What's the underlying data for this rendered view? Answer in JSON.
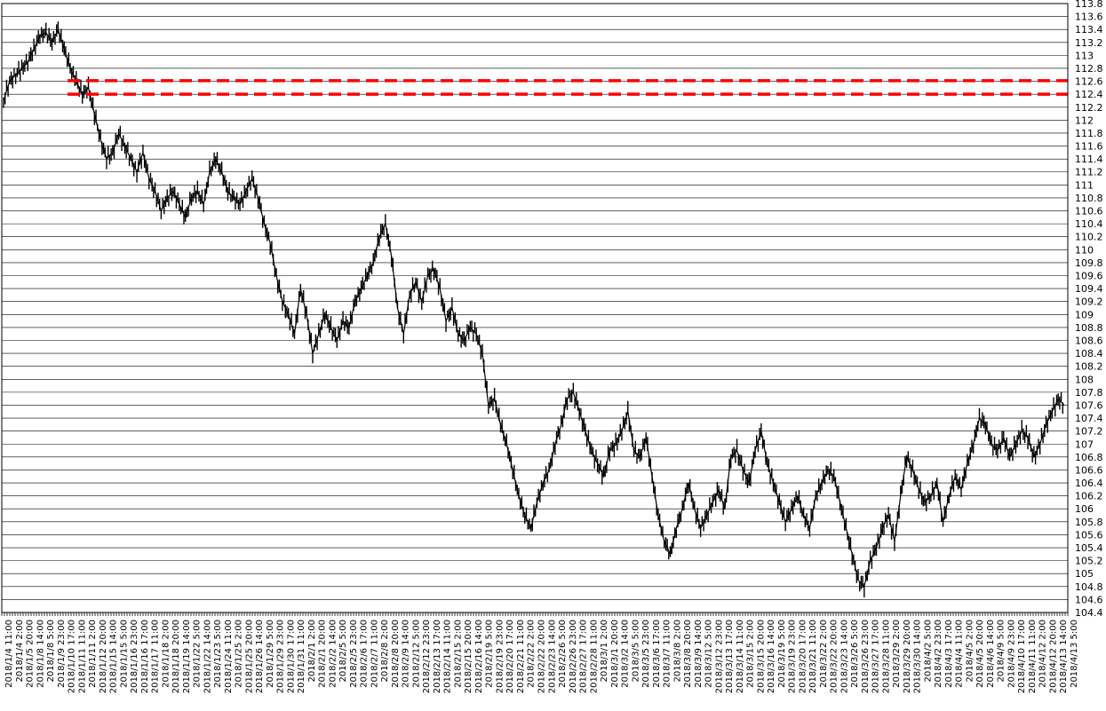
{
  "chart_data": {
    "type": "candlestick",
    "title": "",
    "xlabel": "",
    "ylabel": "",
    "ylim": [
      104.4,
      113.8
    ],
    "y_ticks": [
      104.4,
      104.6,
      104.8,
      105,
      105.2,
      105.4,
      105.6,
      105.8,
      106,
      106.2,
      106.4,
      106.6,
      106.8,
      107,
      107.2,
      107.4,
      107.6,
      107.8,
      108,
      108.2,
      108.4,
      108.6,
      108.8,
      109,
      109.2,
      109.4,
      109.6,
      109.8,
      110,
      110.2,
      110.4,
      110.6,
      110.8,
      111,
      111.2,
      111.4,
      111.6,
      111.8,
      112,
      112.2,
      112.4,
      112.6,
      112.8,
      113,
      113.2,
      113.4,
      113.6,
      113.8
    ],
    "y_tick_labels": [
      "104.4",
      "104.6",
      "104.8",
      "105",
      "105.2",
      "105.4",
      "105.6",
      "105.8",
      "106",
      "106.2",
      "106.4",
      "106.6",
      "106.8",
      "107",
      "107.2",
      "107.4",
      "107.6",
      "107.8",
      "108",
      "108.2",
      "108.4",
      "108.6",
      "108.8",
      "109",
      "109.2",
      "109.4",
      "109.6",
      "109.8",
      "110",
      "110.2",
      "110.4",
      "110.6",
      "110.8",
      "111",
      "111.2",
      "111.4",
      "111.6",
      "111.8",
      "112",
      "112.2",
      "112.4",
      "112.6",
      "112.8",
      "113",
      "113.2",
      "113.4",
      "113.6",
      "113.8"
    ],
    "grid": true,
    "x_tick_labels": [
      "2018/1/4 11:00",
      "2018/1/4 2:00",
      "2018/1/5 20:00",
      "2018/1/8 14:00",
      "2018/1/8 5:00",
      "2018/1/9 23:00",
      "2018/1/10 17:00",
      "2018/1/11 11:00",
      "2018/1/11 2:00",
      "2018/1/12 20:00",
      "2018/1/15 14:00",
      "2018/1/15 5:00",
      "2018/1/16 23:00",
      "2018/1/16 17:00",
      "2018/1/17 11:00",
      "2018/1/18 2:00",
      "2018/1/18 20:00",
      "2018/1/19 14:00",
      "2018/1/22 5:00",
      "2018/1/22 14:00",
      "2018/1/23 5:00",
      "2018/1/24 11:00",
      "2018/1/25 2:00",
      "2018/1/25 20:00",
      "2018/1/26 14:00",
      "2018/1/29 5:00",
      "2018/1/29 23:00",
      "2018/1/30 17:00",
      "2018/1/31 11:00",
      "2018/2/1 2:00",
      "2018/2/1 20:00",
      "2018/2/2 14:00",
      "2018/2/5 5:00",
      "2018/2/5 23:00",
      "2018/2/6 17:00",
      "2018/2/7 11:00",
      "2018/2/8 2:00",
      "2018/2/8 20:00",
      "2018/2/9 14:00",
      "2018/2/12 5:00",
      "2018/2/12 23:00",
      "2018/2/13 17:00",
      "2018/2/14 11:00",
      "2018/2/15 2:00",
      "2018/2/15 20:00",
      "2018/2/16 14:00",
      "2018/2/19 5:00",
      "2018/2/19 23:00",
      "2018/2/20 17:00",
      "2018/2/21 11:00",
      "2018/2/22 2:00",
      "2018/2/22 20:00",
      "2018/2/23 14:00",
      "2018/2/26 5:00",
      "2018/2/26 23:00",
      "2018/2/27 17:00",
      "2018/2/28 11:00",
      "2018/3/1 2:00",
      "2018/3/1 20:00",
      "2018/3/2 14:00",
      "2018/3/5 5:00",
      "2018/3/5 23:00",
      "2018/3/6 17:00",
      "2018/3/7 11:00",
      "2018/3/8 2:00",
      "2018/3/8 20:00",
      "2018/3/9 14:00",
      "2018/3/12 5:00",
      "2018/3/12 23:00",
      "2018/3/13 17:00",
      "2018/3/14 11:00",
      "2018/3/15 2:00",
      "2018/3/15 20:00",
      "2018/3/16 14:00",
      "2018/3/19 5:00",
      "2018/3/19 23:00",
      "2018/3/20 17:00",
      "2018/3/21 11:00",
      "2018/3/22 2:00",
      "2018/3/22 20:00",
      "2018/3/23 14:00",
      "2018/3/26 5:00",
      "2018/3/26 23:00",
      "2018/3/27 17:00",
      "2018/3/28 11:00",
      "2018/3/29 2:00",
      "2018/3/29 20:00",
      "2018/3/30 14:00",
      "2018/4/2 5:00",
      "2018/4/2 23:00",
      "2018/4/3 17:00",
      "2018/4/4 11:00",
      "2018/4/5 2:00",
      "2018/4/5 20:00",
      "2018/4/6 14:00",
      "2018/4/9 5:00",
      "2018/4/9 23:00",
      "2018/4/10 17:00",
      "2018/4/11 11:00",
      "2018/4/12 2:00",
      "2018/4/12 20:00",
      "2018/4/13 14:00",
      "2018/4/13 5:00"
    ],
    "series": [
      {
        "values": [
          112.3,
          112.6,
          112.7,
          112.8,
          112.9,
          113.1,
          113.3,
          113.35,
          113.2,
          113.4,
          113.1,
          112.8,
          112.6,
          112.4,
          112.5,
          112.1,
          111.7,
          111.4,
          111.5,
          111.8,
          111.6,
          111.4,
          111.2,
          111.5,
          111.1,
          110.9,
          110.6,
          110.8,
          110.9,
          110.7,
          110.5,
          110.8,
          110.9,
          110.7,
          111.2,
          111.4,
          111.2,
          110.9,
          110.8,
          110.7,
          110.9,
          111.1,
          110.8,
          110.4,
          110.1,
          109.6,
          109.2,
          109.0,
          108.7,
          109.4,
          109.0,
          108.4,
          108.7,
          109.0,
          108.8,
          108.6,
          108.9,
          108.8,
          109.2,
          109.4,
          109.6,
          109.8,
          110.2,
          110.4,
          109.9,
          109.1,
          108.7,
          109.3,
          109.5,
          109.2,
          109.6,
          109.7,
          109.4,
          108.9,
          109.1,
          108.7,
          108.6,
          108.8,
          108.7,
          108.4,
          107.6,
          107.7,
          107.3,
          107.0,
          106.6,
          106.2,
          105.9,
          105.7,
          106.1,
          106.4,
          106.6,
          107.0,
          107.3,
          107.7,
          107.8,
          107.5,
          107.2,
          106.9,
          106.7,
          106.5,
          106.9,
          107.0,
          107.2,
          107.5,
          106.9,
          106.8,
          107.1,
          106.5,
          105.9,
          105.5,
          105.3,
          105.7,
          106.0,
          106.4,
          106.0,
          105.7,
          105.9,
          106.1,
          106.3,
          106.0,
          106.8,
          106.9,
          106.6,
          106.4,
          106.9,
          107.2,
          106.7,
          106.4,
          106.1,
          105.8,
          106.0,
          106.2,
          105.9,
          105.7,
          106.2,
          106.4,
          106.6,
          106.5,
          106.1,
          105.7,
          105.3,
          104.9,
          104.8,
          105.2,
          105.4,
          105.7,
          105.9,
          105.5,
          106.2,
          106.8,
          106.6,
          106.3,
          106.1,
          106.2,
          106.4,
          105.8,
          106.2,
          106.5,
          106.3,
          106.7,
          107.0,
          107.4,
          107.3,
          107.0,
          106.9,
          107.1,
          106.8,
          107.0,
          107.2,
          107.1,
          106.8,
          107.0,
          107.3,
          107.5,
          107.7,
          107.6
        ]
      },
      {
        "name": "",
        "values": []
      }
    ],
    "horizontal_lines": [
      {
        "value": 112.61,
        "style": "dashed",
        "color": "#ff0000"
      },
      {
        "value": 112.4,
        "style": "dashed",
        "color": "#ff0000"
      }
    ],
    "colors": {
      "candle": "#000000",
      "grid": "#000000",
      "level_line": "#ff0000"
    }
  }
}
